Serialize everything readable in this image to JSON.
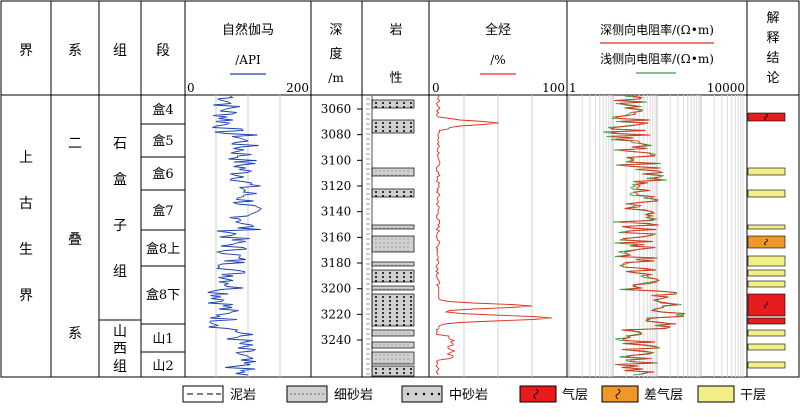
{
  "headers": {
    "jie": "界",
    "xi": "系",
    "zu": "组",
    "duan": "段",
    "gamma_title": "自然伽马",
    "gamma_unit": "/API",
    "gamma_min": "0",
    "gamma_max": "200",
    "depth_title": "深",
    "depth_title2": "度",
    "depth_unit": "/m",
    "lith_title": "岩",
    "lith_title2": "性",
    "gas_title": "全烃",
    "gas_unit": "/%",
    "gas_min": "0",
    "gas_max": "100",
    "res_deep": "深侧向电阻率/(Ω•m)",
    "res_shallow": "浅侧向电阻率/(Ω•m)",
    "res_min": "1",
    "res_max": "10000",
    "interp": [
      "解",
      "释",
      "结",
      "论"
    ]
  },
  "strat": {
    "jie_chars": [
      "上",
      "古",
      "生",
      "界"
    ],
    "xi_chars": [
      "二",
      "叠",
      "系"
    ],
    "zu1_chars": [
      "石",
      "盒",
      "子",
      "组"
    ],
    "zu2_chars": [
      "山",
      "西",
      "组"
    ],
    "segments": [
      "盒4",
      "盒5",
      "盒6",
      "盒7",
      "盒8上",
      "盒8下",
      "山1",
      "山2"
    ]
  },
  "depth_ticks": [
    "3060",
    "3080",
    "3100",
    "3120",
    "3140",
    "3160",
    "3180",
    "3200",
    "3220",
    "3240"
  ],
  "legend": {
    "items": [
      {
        "label": "泥岩",
        "pattern": "mudstone"
      },
      {
        "label": "细砂岩",
        "pattern": "fine-sandstone"
      },
      {
        "label": "中砂岩",
        "pattern": "medium-sandstone"
      },
      {
        "label": "气层",
        "pattern": "gas-layer"
      },
      {
        "label": "差气层",
        "pattern": "poor-gas-layer"
      },
      {
        "label": "干层",
        "pattern": "dry-layer"
      }
    ]
  },
  "colors": {
    "gamma_curve": "#1a3fb0",
    "gas_curve": "#e03020",
    "deep_res": "#e03020",
    "shallow_res": "#3aa040",
    "gas_layer": "#e81c1c",
    "poor_gas_layer": "#f0962a",
    "dry_layer": "#f2ee88",
    "sand_fill": "#d0d0d0"
  }
}
